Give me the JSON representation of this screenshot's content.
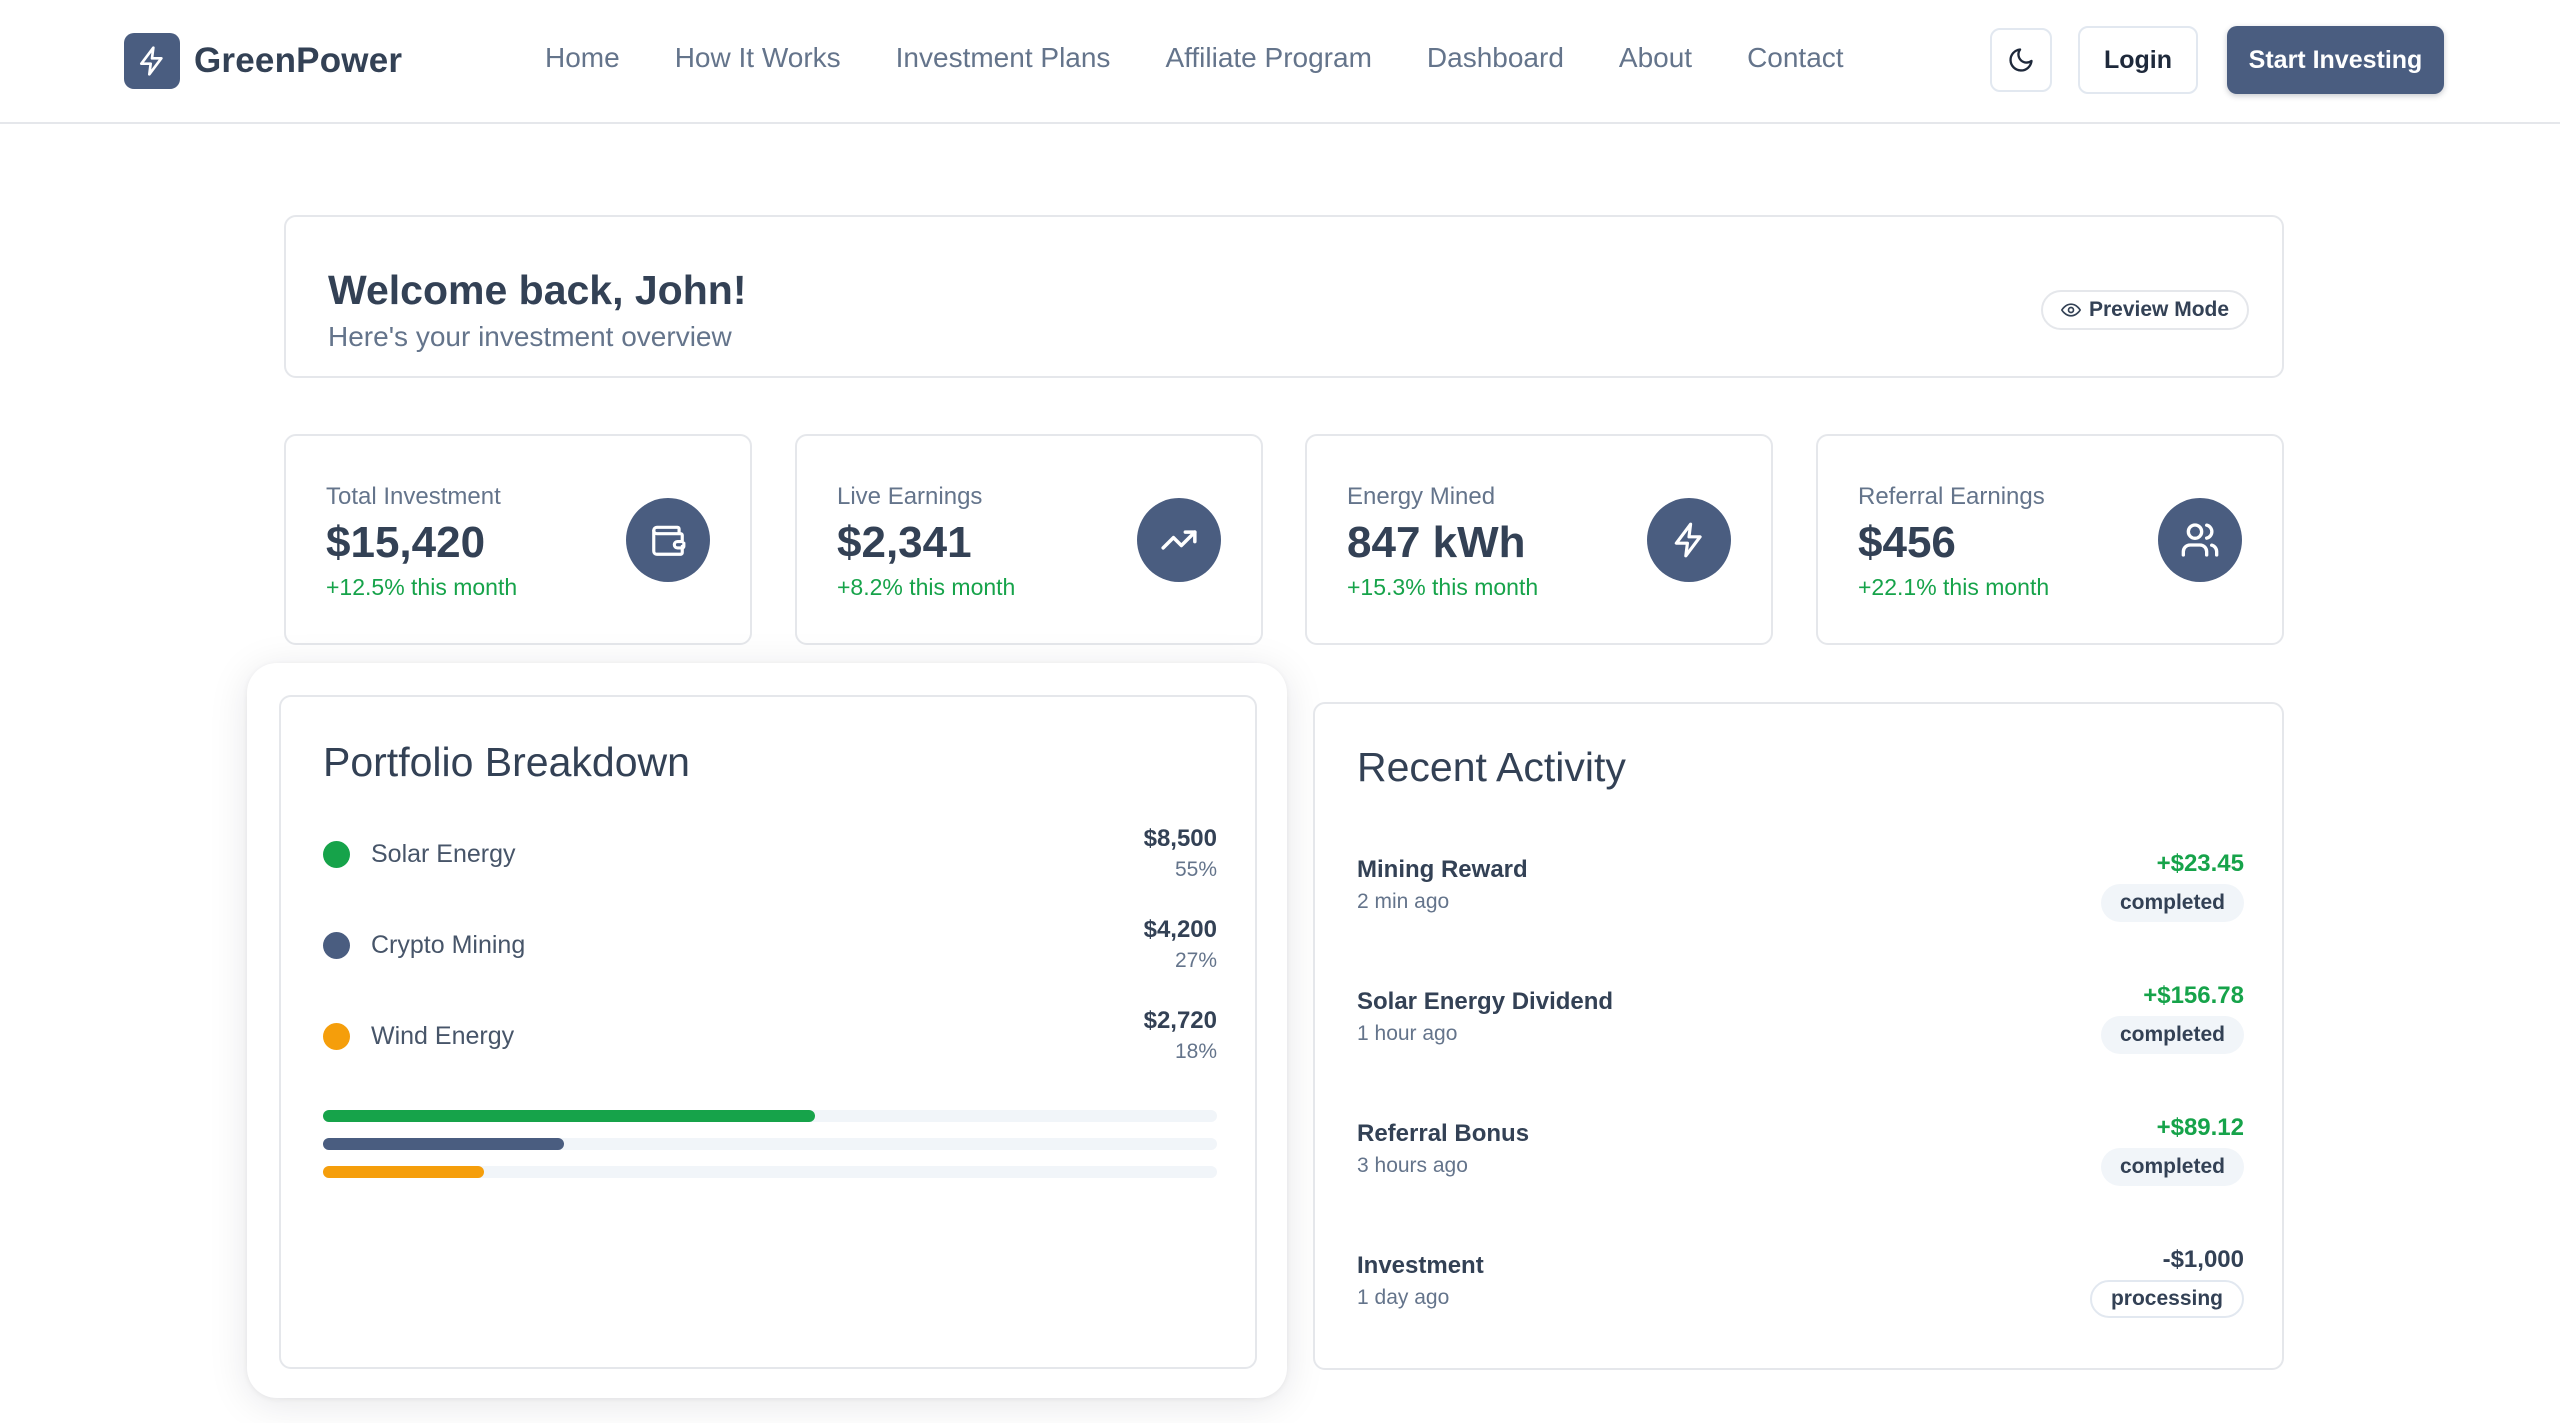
{
  "brand": {
    "name": "GreenPower",
    "icon": "lightning-bolt-icon"
  },
  "nav": {
    "links": [
      "Home",
      "How It Works",
      "Investment Plans",
      "Affiliate Program",
      "Dashboard",
      "About",
      "Contact"
    ]
  },
  "header_actions": {
    "theme_icon": "moon-icon",
    "login_label": "Login",
    "start_label": "Start Investing"
  },
  "welcome": {
    "title": "Welcome back, John!",
    "subtitle": "Here's your investment overview",
    "preview_label": "Preview Mode",
    "preview_icon": "eye-icon"
  },
  "stats": [
    {
      "label": "Total Investment",
      "value": "$15,420",
      "change": "+12.5% this month",
      "icon": "wallet-icon"
    },
    {
      "label": "Live Earnings",
      "value": "$2,341",
      "change": "+8.2% this month",
      "icon": "trending-up-icon"
    },
    {
      "label": "Energy Mined",
      "value": "847 kWh",
      "change": "+15.3% this month",
      "icon": "lightning-bolt-icon"
    },
    {
      "label": "Referral Earnings",
      "value": "$456",
      "change": "+22.1% this month",
      "icon": "users-icon"
    }
  ],
  "portfolio": {
    "title": "Portfolio Breakdown",
    "assets": [
      {
        "name": "Solar Energy",
        "amount": "$8,500",
        "percent": "55%",
        "fraction": 0.55,
        "color": "#16a34a"
      },
      {
        "name": "Crypto Mining",
        "amount": "$4,200",
        "percent": "27%",
        "fraction": 0.27,
        "color": "#4a5d80"
      },
      {
        "name": "Wind Energy",
        "amount": "$2,720",
        "percent": "18%",
        "fraction": 0.18,
        "color": "#f59e0b"
      }
    ]
  },
  "activity": {
    "title": "Recent Activity",
    "items": [
      {
        "title": "Mining Reward",
        "time": "2 min ago",
        "amount": "+$23.45",
        "status": "completed"
      },
      {
        "title": "Solar Energy Dividend",
        "time": "1 hour ago",
        "amount": "+$156.78",
        "status": "completed"
      },
      {
        "title": "Referral Bonus",
        "time": "3 hours ago",
        "amount": "+$89.12",
        "status": "completed"
      },
      {
        "title": "Investment",
        "time": "1 day ago",
        "amount": "-$1,000",
        "status": "processing"
      }
    ]
  },
  "colors": {
    "brand": "#4a5d80",
    "positive": "#16a34a",
    "text": "#334155"
  }
}
